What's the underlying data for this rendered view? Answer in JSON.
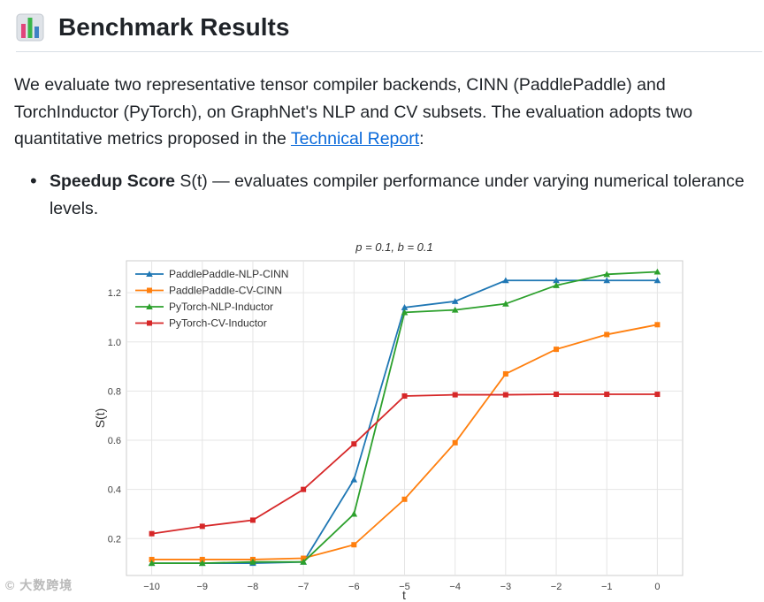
{
  "heading": {
    "icon": "bar-chart-emoji-icon",
    "title": "Benchmark Results"
  },
  "intro": {
    "text_before": "We evaluate two representative tensor compiler backends, CINN (PaddlePaddle) and TorchInductor (PyTorch), on GraphNet's NLP and CV subsets. The evaluation adopts two quantitative metrics proposed in the ",
    "link_text": "Technical Report",
    "text_after": ":"
  },
  "bullets": [
    {
      "term": "Speedup Score",
      "rest": " S(t) — evaluates compiler performance under varying numerical tolerance levels."
    }
  ],
  "watermark": "© 大数跨境",
  "chart_data": {
    "type": "line",
    "title": "p = 0.1, b = 0.1",
    "xlabel": "t",
    "ylabel": "S(t)",
    "x": [
      -10,
      -9,
      -8,
      -7,
      -6,
      -5,
      -4,
      -3,
      -2,
      -1,
      0
    ],
    "xlim": [
      -10.5,
      0.5
    ],
    "ylim": [
      0.05,
      1.33
    ],
    "yticks": [
      0.2,
      0.4,
      0.6,
      0.8,
      1.0,
      1.2
    ],
    "ytick_labels": [
      "0.2",
      "0.4",
      "0.6",
      "0.8",
      "1.0",
      "1.2"
    ],
    "xtick_labels": [
      "−10",
      "−9",
      "−8",
      "−7",
      "−6",
      "−5",
      "−4",
      "−3",
      "−2",
      "−1",
      "0"
    ],
    "grid": true,
    "legend_position": "top-left",
    "series": [
      {
        "name": "PaddlePaddle-NLP-CINN",
        "color": "#1f77b4",
        "marker": "triangle",
        "values": [
          0.1,
          0.1,
          0.1,
          0.105,
          0.44,
          1.14,
          1.165,
          1.25,
          1.25,
          1.25,
          1.25
        ]
      },
      {
        "name": "PaddlePaddle-CV-CINN",
        "color": "#ff7f0e",
        "marker": "square",
        "values": [
          0.115,
          0.115,
          0.115,
          0.12,
          0.175,
          0.36,
          0.59,
          0.87,
          0.97,
          1.03,
          1.07
        ]
      },
      {
        "name": "PyTorch-NLP-Inductor",
        "color": "#2ca02c",
        "marker": "triangle",
        "values": [
          0.1,
          0.1,
          0.105,
          0.105,
          0.3,
          1.12,
          1.13,
          1.155,
          1.23,
          1.275,
          1.285
        ]
      },
      {
        "name": "PyTorch-CV-Inductor",
        "color": "#d62728",
        "marker": "square",
        "values": [
          0.22,
          0.25,
          0.275,
          0.4,
          0.585,
          0.78,
          0.785,
          0.785,
          0.787,
          0.787,
          0.787
        ]
      }
    ]
  }
}
